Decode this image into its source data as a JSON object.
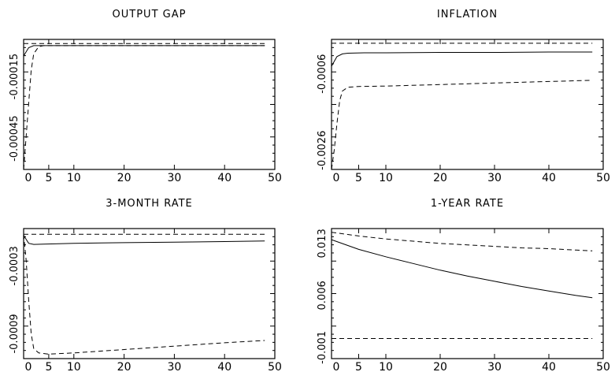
{
  "chart_data": [
    {
      "type": "line",
      "title": "OUTPUT GAP",
      "xlim": [
        0,
        50
      ],
      "ylim": [
        -0.0006,
        3e-05
      ],
      "xticks": [
        0,
        5,
        10,
        20,
        30,
        40,
        50
      ],
      "xtick_labels": [
        "0",
        "5",
        "10",
        "20",
        "30",
        "40",
        "50"
      ],
      "yticks": [
        -0.00015,
        -0.00045
      ],
      "ytick_labels": [
        "-0.00015",
        "-0.00045"
      ],
      "grid": false,
      "series": [
        {
          "style": "solid",
          "x": [
            0,
            1,
            2,
            3,
            4,
            48
          ],
          "y": [
            -5e-05,
            -1e-05,
            0.0,
            0.0,
            0.0,
            0.0
          ]
        },
        {
          "style": "dashed",
          "x": [
            0,
            0.5,
            1,
            1.5,
            2,
            3,
            4,
            48
          ],
          "y": [
            -0.0006,
            -0.00044,
            -0.00028,
            -0.00012,
            -4e-05,
            -5e-06,
            0.0,
            0.0
          ]
        },
        {
          "style": "dashed",
          "x": [
            0,
            48
          ],
          "y": [
            1e-05,
            1e-05
          ]
        }
      ]
    },
    {
      "type": "line",
      "title": "INFLATION",
      "xlim": [
        0,
        50
      ],
      "ylim": [
        -0.0031,
        0.0003
      ],
      "xticks": [
        0,
        5,
        10,
        20,
        30,
        40,
        50
      ],
      "xtick_labels": [
        "0",
        "5",
        "10",
        "20",
        "30",
        "40",
        "50"
      ],
      "yticks": [
        -0.0006,
        -0.0026
      ],
      "ytick_labels": [
        "-0.0006",
        "-0.0026"
      ],
      "grid": false,
      "series": [
        {
          "style": "solid",
          "x": [
            0,
            1,
            2,
            3,
            6,
            10,
            20,
            30,
            40,
            48
          ],
          "y": [
            -0.0004,
            -0.00015,
            -8e-05,
            -6e-05,
            -5e-05,
            -5e-05,
            -4e-05,
            -4e-05,
            -3e-05,
            -3e-05
          ]
        },
        {
          "style": "dashed",
          "x": [
            0,
            0.5,
            1,
            1.5,
            2,
            3,
            5,
            10,
            20,
            30,
            40,
            48
          ],
          "y": [
            -0.0031,
            -0.0026,
            -0.0019,
            -0.0013,
            -0.00105,
            -0.00095,
            -0.00093,
            -0.00092,
            -0.00088,
            -0.00084,
            -0.0008,
            -0.00077
          ]
        },
        {
          "style": "dashed",
          "x": [
            0,
            48
          ],
          "y": [
            0.0002,
            0.0002
          ]
        }
      ]
    },
    {
      "type": "line",
      "title": "3-MONTH RATE",
      "xlim": [
        0,
        50
      ],
      "ylim": [
        -0.00112,
        3e-05
      ],
      "xticks": [
        0,
        5,
        10,
        20,
        30,
        40,
        50
      ],
      "xtick_labels": [
        "0",
        "5",
        "10",
        "20",
        "30",
        "40",
        "50"
      ],
      "yticks": [
        -0.0003,
        -0.0009
      ],
      "ytick_labels": [
        "-0.0003",
        "-0.0009"
      ],
      "grid": false,
      "series": [
        {
          "style": "solid",
          "x": [
            0,
            1,
            2,
            4,
            10,
            20,
            30,
            40,
            48
          ],
          "y": [
            -3e-05,
            -0.0001,
            -0.00011,
            -0.000108,
            -0.0001,
            -9.5e-05,
            -9e-05,
            -8.5e-05,
            -8e-05
          ]
        },
        {
          "style": "dashed",
          "x": [
            0,
            0.5,
            1,
            1.5,
            2,
            3,
            5,
            10,
            20,
            30,
            40,
            48
          ],
          "y": [
            -2e-05,
            -0.00025,
            -0.0006,
            -0.0009,
            -0.00103,
            -0.00107,
            -0.00108,
            -0.00107,
            -0.00104,
            -0.00101,
            -0.00098,
            -0.00096
          ]
        },
        {
          "style": "dashed",
          "x": [
            0,
            48
          ],
          "y": [
            -2e-05,
            -2e-05
          ]
        }
      ]
    },
    {
      "type": "line",
      "title": "1-YEAR RATE",
      "xlim": [
        0,
        50
      ],
      "ylim": [
        -0.0025,
        0.015
      ],
      "xticks": [
        0,
        5,
        10,
        20,
        30,
        40,
        50
      ],
      "xtick_labels": [
        "0",
        "5",
        "10",
        "20",
        "30",
        "40",
        "50"
      ],
      "yticks": [
        0.013,
        0.006,
        -0.001
      ],
      "ytick_labels": [
        "0.013",
        "0.006",
        "-0.001"
      ],
      "grid": false,
      "series": [
        {
          "style": "solid",
          "x": [
            0,
            5,
            10,
            15,
            20,
            25,
            30,
            35,
            40,
            45,
            48
          ],
          "y": [
            0.0135,
            0.0122,
            0.0112,
            0.0103,
            0.0094,
            0.0086,
            0.0079,
            0.0072,
            0.0066,
            0.006,
            0.0057
          ]
        },
        {
          "style": "dashed",
          "x": [
            0,
            5,
            10,
            15,
            20,
            25,
            30,
            35,
            40,
            45,
            48
          ],
          "y": [
            0.0145,
            0.014,
            0.0136,
            0.0133,
            0.013,
            0.0128,
            0.0126,
            0.0124,
            0.0123,
            0.0121,
            0.012
          ]
        },
        {
          "style": "dashed",
          "x": [
            0,
            48
          ],
          "y": [
            0.0002,
            0.0002
          ]
        }
      ]
    }
  ]
}
